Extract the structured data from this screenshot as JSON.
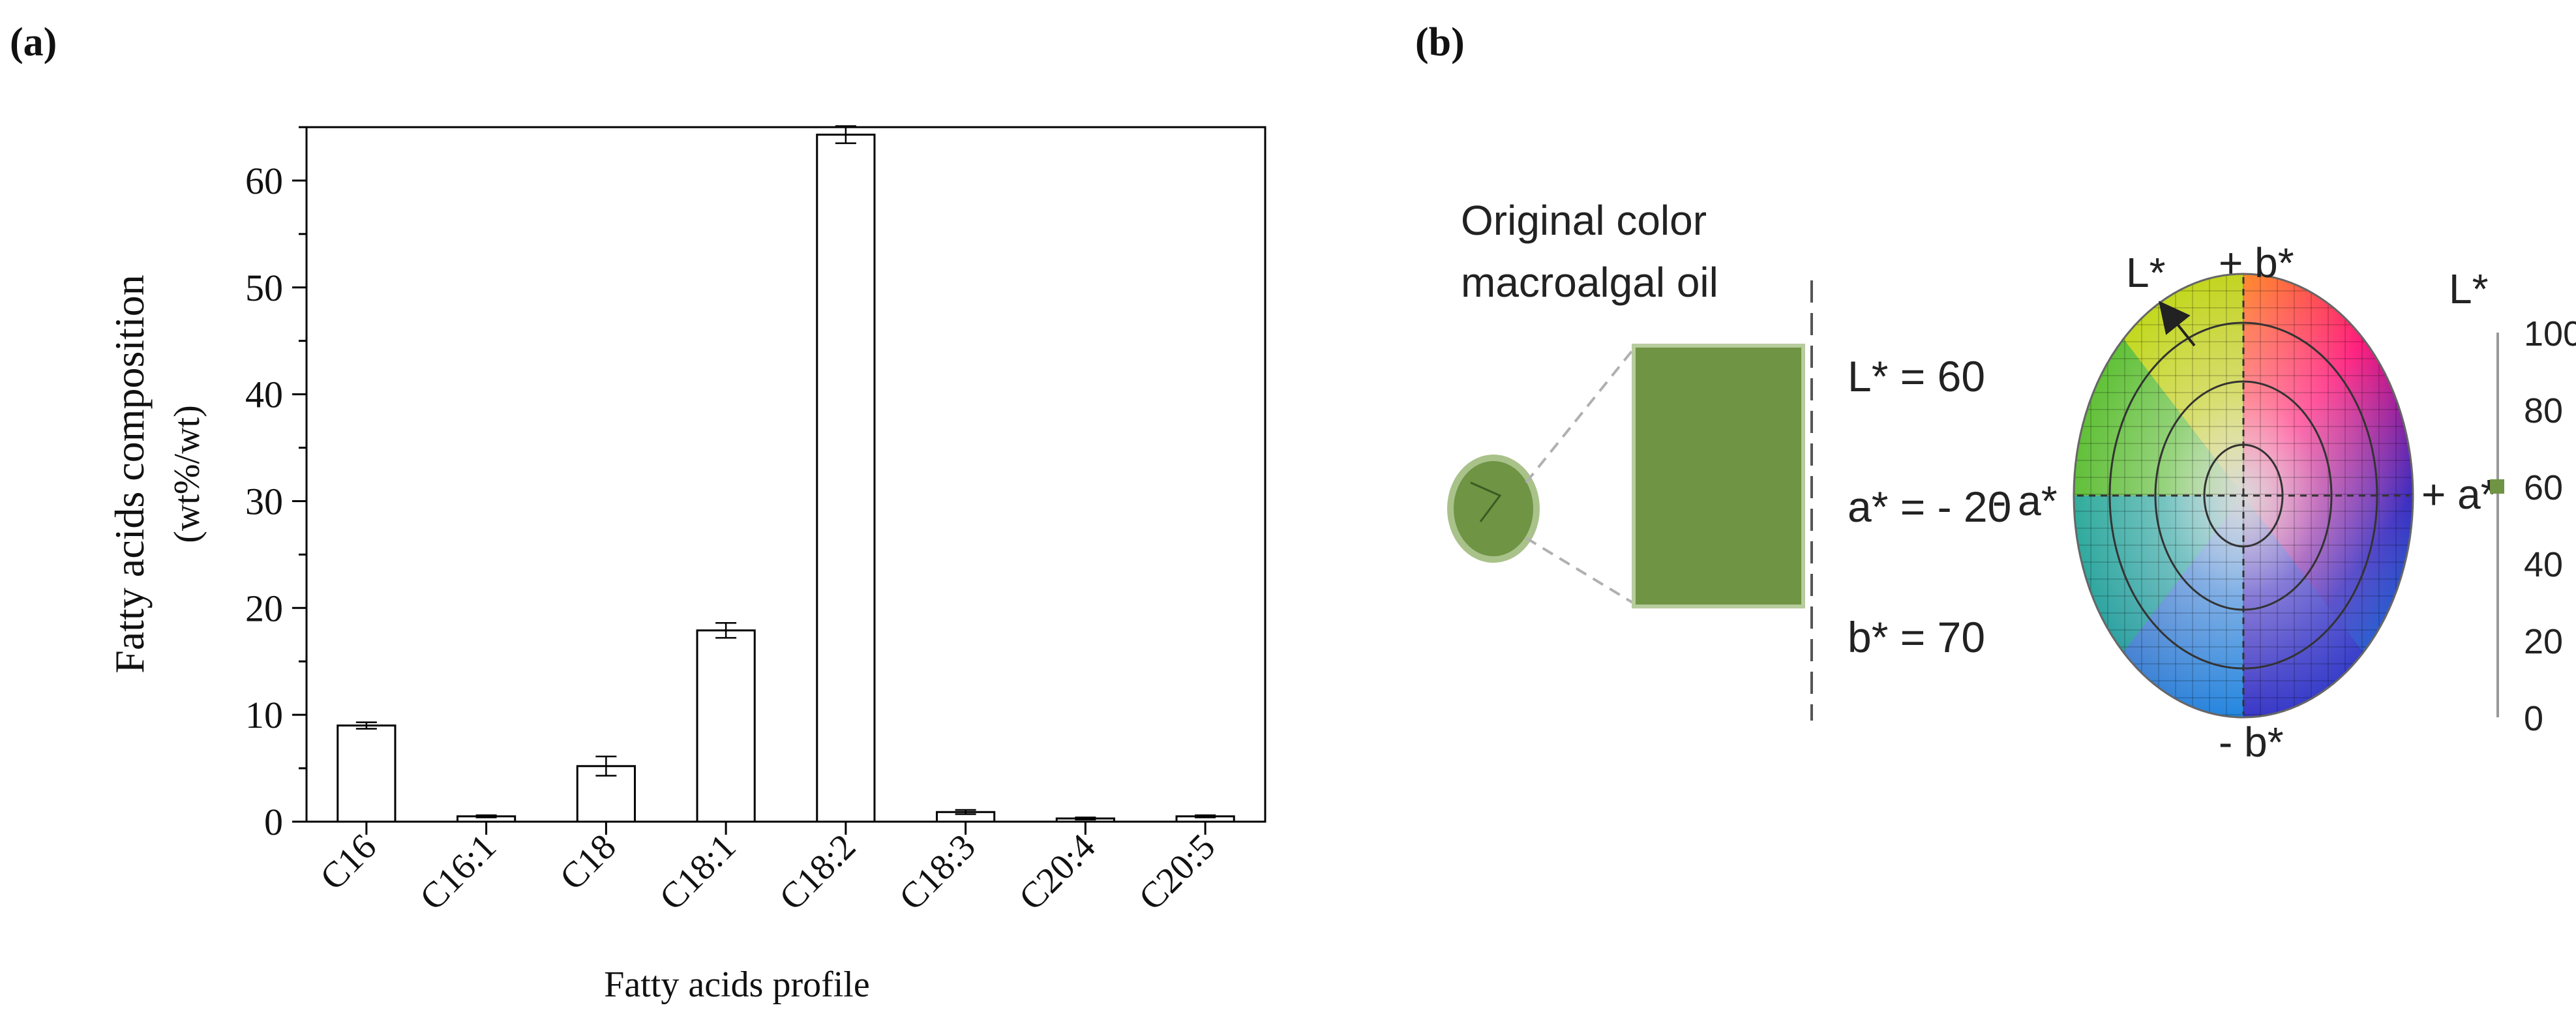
{
  "panels": {
    "a_label": "(a)",
    "b_label": "(b)"
  },
  "chart_data": {
    "type": "bar",
    "categories": [
      "C16",
      "C16:1",
      "C18",
      "C18:1",
      "C18:2",
      "C18:3",
      "C20:4",
      "C20:5"
    ],
    "values": [
      9.0,
      0.5,
      5.2,
      17.9,
      64.3,
      0.9,
      0.3,
      0.5
    ],
    "errors": [
      0.3,
      0.1,
      0.9,
      0.7,
      0.8,
      0.2,
      0.1,
      0.1
    ],
    "xlabel": "Fatty acids profile",
    "ylabel_line1": "Fatty acids composition",
    "ylabel_line2": "(wt%/wt)",
    "ylim": [
      0,
      65
    ],
    "yticks": [
      0,
      10,
      20,
      30,
      40,
      50,
      60
    ],
    "grid": false,
    "bar_fill": "#ffffff",
    "bar_stroke": "#000000"
  },
  "color_panel": {
    "title_line1": "Original color",
    "title_line2": "macroalgal oil",
    "sample_color": "#6f9444",
    "L_value": "L* = 60",
    "a_value": "a* = - 20",
    "b_value": "b* = 70",
    "wheel_labels": {
      "L": "L*",
      "plus_b": "+ b*",
      "minus_b": "- b*",
      "plus_a": "+ a*",
      "minus_a": "- a*"
    },
    "scale_title": "L*",
    "scale_ticks": [
      "100",
      "80",
      "60",
      "40",
      "20",
      "0"
    ],
    "scale_marker_value": 60
  }
}
